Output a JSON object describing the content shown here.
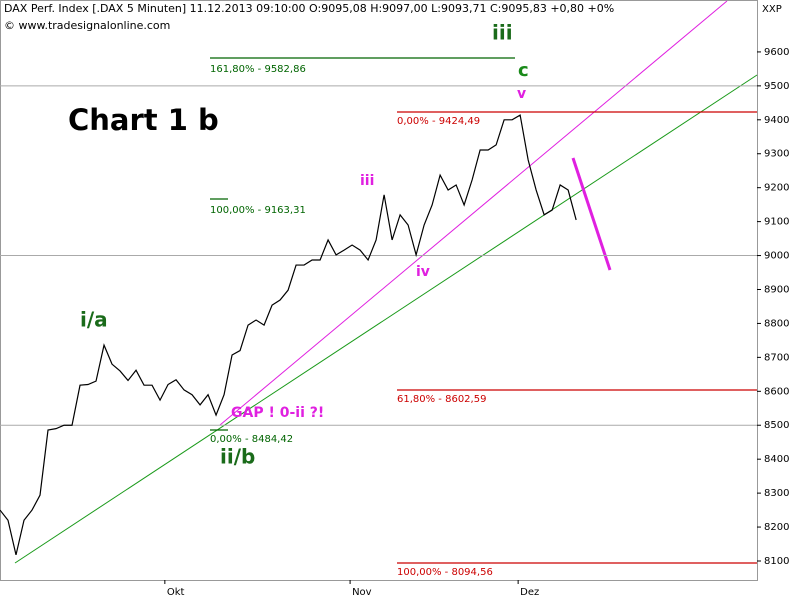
{
  "chart_data": {
    "type": "line",
    "header": "DAX Perf. Index [.DAX  5 Minuten]  11.12.2013 09:10:00  O:9095,08  H:9097,00  L:9093,71  C:9095,83  +0,80  +0%",
    "copyright": "© www.tradesignalonline.com",
    "currency": "XXP",
    "chart_label": "Chart 1 b",
    "series": [
      {
        "color": "#000000",
        "values": [
          8250,
          8220,
          8118,
          8220,
          8250,
          8294,
          8486,
          8490,
          8500,
          8500,
          8618,
          8620,
          8630,
          8736,
          8680,
          8660,
          8632,
          8662,
          8618,
          8618,
          8574,
          8620,
          8634,
          8604,
          8590,
          8560,
          8590,
          8530,
          8590,
          8707,
          8720,
          8795,
          8810,
          8795,
          8854,
          8869,
          8898,
          8972,
          8972,
          8987,
          8987,
          9046,
          9002,
          9016,
          9031,
          9016,
          8987,
          9046,
          9179,
          9046,
          9120,
          9090,
          9002,
          9090,
          9149,
          9237,
          9193,
          9208,
          9149,
          9223,
          9311,
          9311,
          9326,
          9400,
          9400,
          9414,
          9282,
          9193,
          9120,
          9134,
          9208,
          9193,
          9105
        ]
      }
    ],
    "xlim": [
      0,
      94.6
    ],
    "xticks": [
      {
        "value": 20.6,
        "label": "Okt"
      },
      {
        "value": 43.75,
        "label": "Nov"
      },
      {
        "value": 64.75,
        "label": "Dez"
      }
    ],
    "ylim": [
      8044,
      9753
    ],
    "yticks": [
      8100,
      8200,
      8300,
      8400,
      8500,
      8600,
      8700,
      8800,
      8900,
      9000,
      9100,
      9200,
      9300,
      9400,
      9500,
      9600
    ],
    "grid_levels": [
      8500,
      9000,
      9500
    ],
    "fib_levels": [
      {
        "label": "161,80% - 9582,86",
        "color": "#006400"
      },
      {
        "label": "100,00% - 9163,31",
        "color": "#006400"
      },
      {
        "label": "0,00% - 8484,42",
        "color": "#006400"
      },
      {
        "label": "0,00% - 9424,49",
        "color": "#cc0000"
      },
      {
        "label": "61,80% - 8602,59",
        "color": "#cc0000"
      },
      {
        "label": "100,00% - 8094,56",
        "color": "#cc0000"
      }
    ],
    "wave_labels": [
      {
        "text": "iii",
        "color": "#1a6b1a"
      },
      {
        "text": "c",
        "color": "#1a8a1a"
      },
      {
        "text": "v",
        "color": "#e020e0"
      },
      {
        "text": "iii",
        "color": "#e020e0"
      },
      {
        "text": "iv",
        "color": "#e020e0"
      },
      {
        "text": "i/a",
        "color": "#1a6b1a"
      },
      {
        "text": "ii/b",
        "color": "#1a6b1a"
      },
      {
        "text": "GAP !  0-ii ?!",
        "color": "#e020e0"
      }
    ]
  }
}
